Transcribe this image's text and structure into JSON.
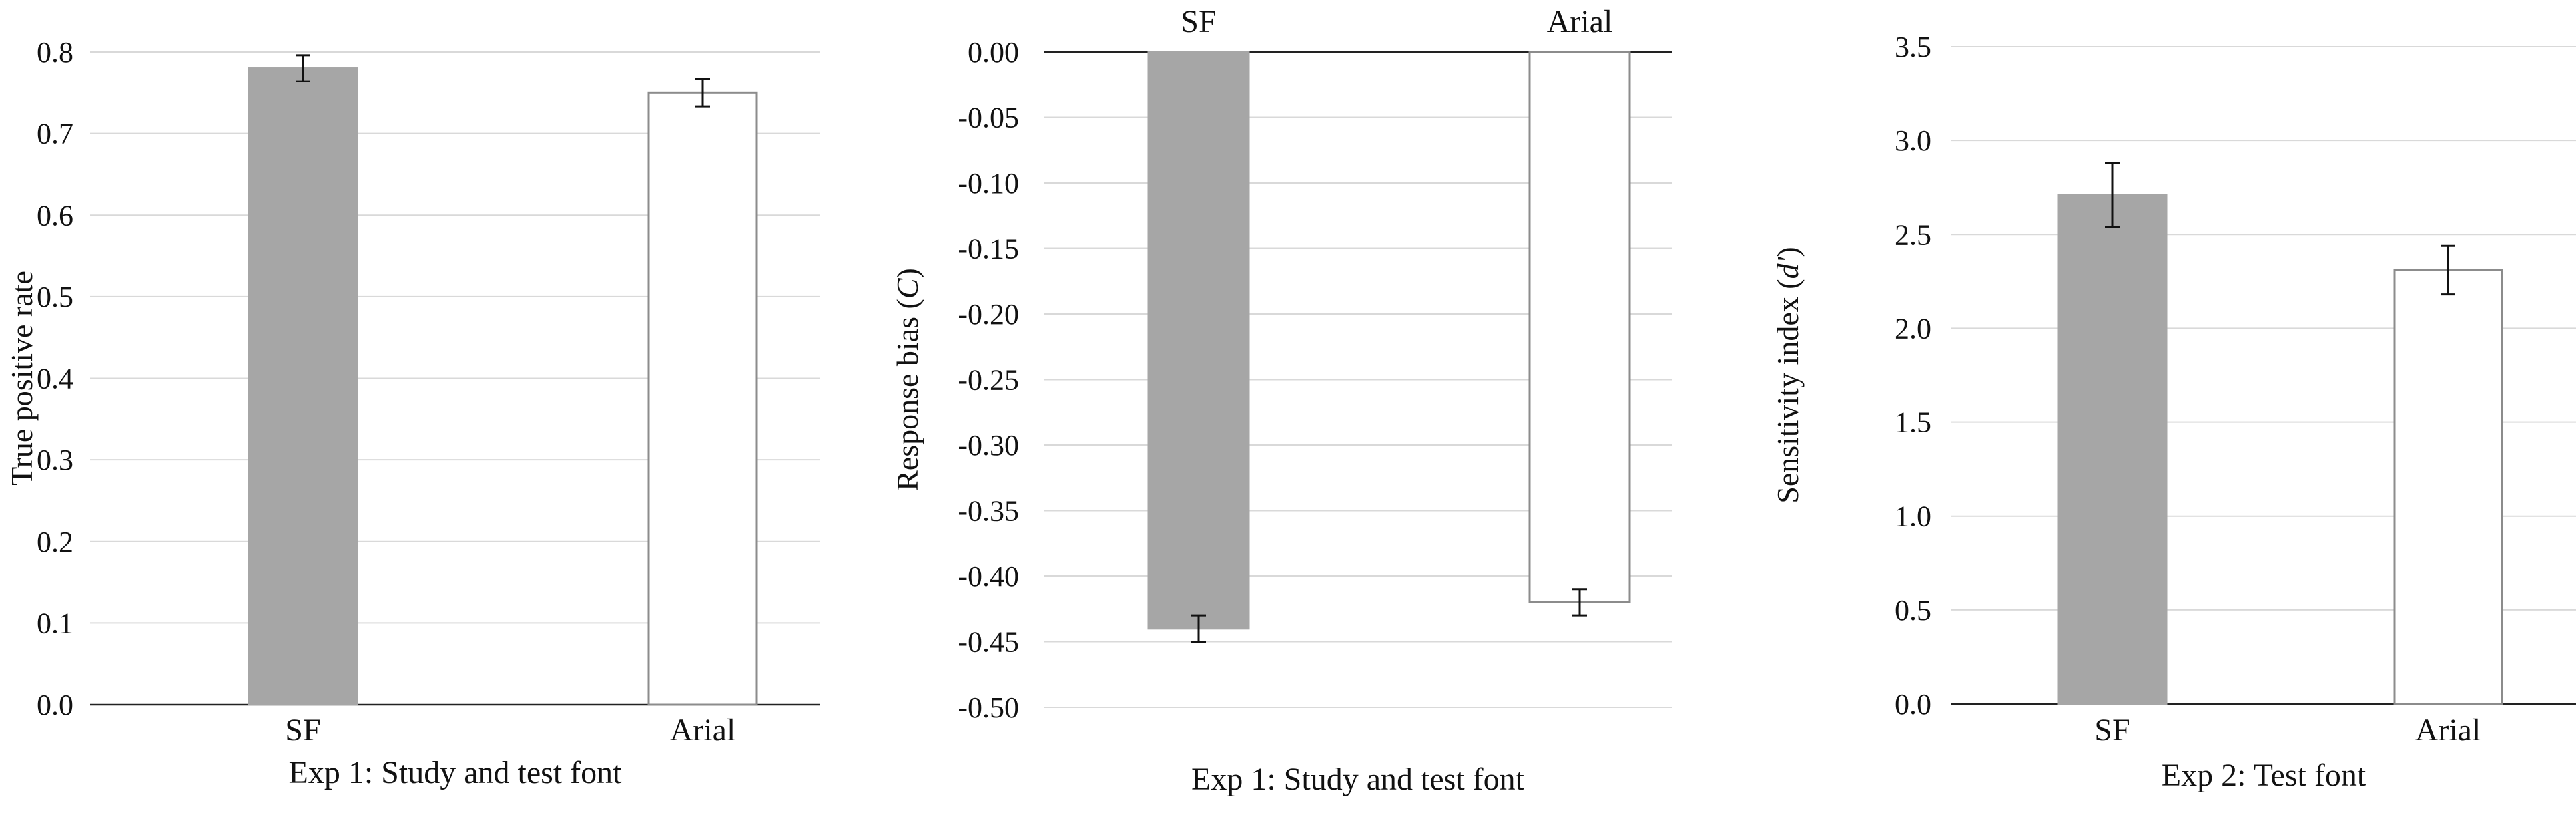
{
  "figure": {
    "panel_count": 3
  },
  "chart_data": [
    {
      "type": "bar",
      "categories": [
        "SF",
        "Arial"
      ],
      "values": [
        0.78,
        0.75
      ],
      "error": [
        0.016,
        0.017
      ],
      "bar_colors": [
        "#a6a6a6",
        "#ffffff"
      ],
      "bar_edge_colors": [
        "#a6a6a6",
        "#8c8c8c"
      ],
      "title": "",
      "xlabel": "Exp 1: Study and test font",
      "ylabel": "True positive rate",
      "ylabel_italic_part": "",
      "ylabel_suffix": "",
      "ylim": [
        0,
        0.8
      ],
      "yticks": [
        0.0,
        0.1,
        0.2,
        0.3,
        0.4,
        0.5,
        0.6,
        0.7,
        0.8
      ],
      "ytick_labels": [
        "0.0",
        "0.1",
        "0.2",
        "0.3",
        "0.4",
        "0.5",
        "0.6",
        "0.7",
        "0.8"
      ],
      "category_labels_position": "bottom",
      "grid": true
    },
    {
      "type": "bar",
      "categories": [
        "SF",
        "Arial"
      ],
      "values": [
        -0.44,
        -0.42
      ],
      "error": [
        0.01,
        0.01
      ],
      "bar_colors": [
        "#a6a6a6",
        "#ffffff"
      ],
      "bar_edge_colors": [
        "#a6a6a6",
        "#8c8c8c"
      ],
      "title": "",
      "xlabel": "Exp 1: Study and test font",
      "ylabel": "Response bias (",
      "ylabel_italic_part": "C",
      "ylabel_suffix": ")",
      "ylim": [
        -0.5,
        0.0
      ],
      "yticks": [
        0.0,
        -0.05,
        -0.1,
        -0.15,
        -0.2,
        -0.25,
        -0.3,
        -0.35,
        -0.4,
        -0.45,
        -0.5
      ],
      "ytick_labels": [
        "0.00",
        "-0.05",
        "-0.10",
        "-0.15",
        "-0.20",
        "-0.25",
        "-0.30",
        "-0.35",
        "-0.40",
        "-0.45",
        "-0.50"
      ],
      "category_labels_position": "top",
      "grid": true
    },
    {
      "type": "bar",
      "categories": [
        "SF",
        "Arial"
      ],
      "values": [
        2.71,
        2.31
      ],
      "error": [
        0.17,
        0.13
      ],
      "bar_colors": [
        "#a6a6a6",
        "#ffffff"
      ],
      "bar_edge_colors": [
        "#a6a6a6",
        "#8c8c8c"
      ],
      "title": "",
      "xlabel": "Exp 2: Test font",
      "ylabel": "Sensitivity index (",
      "ylabel_italic_part": "d'",
      "ylabel_suffix": ")",
      "ylim": [
        0,
        3.5
      ],
      "yticks": [
        0.0,
        0.5,
        1.0,
        1.5,
        2.0,
        2.5,
        3.0,
        3.5
      ],
      "ytick_labels": [
        "0.0",
        "0.5",
        "1.0",
        "1.5",
        "2.0",
        "2.5",
        "3.0",
        "3.5"
      ],
      "category_labels_position": "bottom",
      "grid": true
    }
  ]
}
